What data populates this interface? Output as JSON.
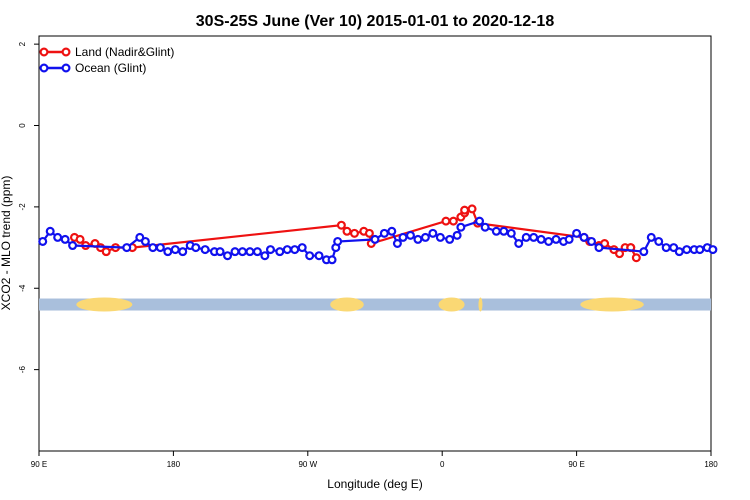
{
  "chart_data": {
    "type": "line",
    "title": "30S-25S June (Ver 10)   2015-01-01 to 2020-12-18",
    "xlabel": "Longitude (deg E)",
    "ylabel": "XCO2 - MLO trend (ppm)",
    "xlim": [
      90,
      450
    ],
    "ylim": [
      -8,
      2.2
    ],
    "x_ticks": [
      {
        "value": 90,
        "label": "90 E"
      },
      {
        "value": 162,
        "label": "180"
      },
      {
        "value": 234,
        "label": "90 W"
      },
      {
        "value": 306,
        "label": "0"
      },
      {
        "value": 378,
        "label": "90 E"
      },
      {
        "value": 450,
        "label": "180"
      }
    ],
    "y_ticks": [
      {
        "value": 2,
        "label": "2"
      },
      {
        "value": 0,
        "label": "0"
      },
      {
        "value": -2,
        "label": "-2"
      },
      {
        "value": -4,
        "label": "-4"
      },
      {
        "value": -6,
        "label": "-6"
      }
    ],
    "grid": false,
    "legend_position": "top-left",
    "land_sea_strip": {
      "y": -4.4,
      "ocean_color": "#a9bfdc",
      "land_color": "#fad874",
      "land_segments": [
        [
          110,
          140
        ],
        [
          246,
          264
        ],
        [
          304,
          318
        ],
        [
          326,
          327
        ],
        [
          380,
          414
        ]
      ]
    },
    "series": [
      {
        "name": "Land (Nadir&Glint)",
        "color": "#ee1111",
        "x": [
          109,
          112,
          115,
          120,
          123,
          126,
          131,
          140,
          252,
          255,
          259,
          264,
          267,
          268,
          308,
          312,
          316,
          318,
          318,
          322,
          325,
          382,
          385,
          390,
          393,
          398,
          401,
          404,
          407,
          407,
          410
        ],
        "y": [
          -2.75,
          -2.8,
          -2.95,
          -2.9,
          -3.0,
          -3.1,
          -3.0,
          -3.0,
          -2.45,
          -2.6,
          -2.65,
          -2.6,
          -2.65,
          -2.9,
          -2.35,
          -2.35,
          -2.25,
          -2.15,
          -2.08,
          -2.05,
          -2.4,
          -2.75,
          -2.85,
          -2.95,
          -2.9,
          -3.05,
          -3.15,
          -3.0,
          -3.0,
          -3.0,
          -3.25
        ]
      },
      {
        "name": "Ocean (Glint)",
        "color": "#1111ee",
        "x": [
          92,
          96,
          100,
          104,
          108,
          137,
          144,
          147,
          151,
          155,
          159,
          163,
          167,
          171,
          174,
          179,
          184,
          187,
          191,
          195,
          199,
          203,
          207,
          211,
          214,
          219,
          223,
          227,
          231,
          235,
          240,
          244,
          247,
          249,
          250,
          270,
          275,
          279,
          282,
          285,
          289,
          293,
          297,
          301,
          305,
          310,
          314,
          316,
          326,
          329,
          335,
          339,
          343,
          347,
          351,
          355,
          359,
          363,
          367,
          371,
          374,
          378,
          382,
          386,
          390,
          414,
          418,
          422,
          426,
          430,
          433,
          437,
          441,
          444,
          448,
          451
        ],
        "y": [
          -2.85,
          -2.6,
          -2.75,
          -2.8,
          -2.95,
          -3.0,
          -2.75,
          -2.85,
          -3.0,
          -3.0,
          -3.1,
          -3.05,
          -3.1,
          -2.95,
          -3.0,
          -3.05,
          -3.1,
          -3.1,
          -3.2,
          -3.1,
          -3.1,
          -3.1,
          -3.1,
          -3.2,
          -3.05,
          -3.1,
          -3.05,
          -3.05,
          -3.0,
          -3.2,
          -3.2,
          -3.3,
          -3.3,
          -3.0,
          -2.85,
          -2.8,
          -2.65,
          -2.6,
          -2.9,
          -2.75,
          -2.7,
          -2.8,
          -2.75,
          -2.65,
          -2.75,
          -2.8,
          -2.7,
          -2.5,
          -2.35,
          -2.5,
          -2.6,
          -2.6,
          -2.65,
          -2.9,
          -2.75,
          -2.75,
          -2.8,
          -2.85,
          -2.8,
          -2.85,
          -2.8,
          -2.65,
          -2.75,
          -2.85,
          -3.0,
          -3.1,
          -2.75,
          -2.85,
          -3.0,
          -3.0,
          -3.1,
          -3.05,
          -3.05,
          -3.05,
          -3.0,
          -3.05
        ]
      }
    ]
  }
}
